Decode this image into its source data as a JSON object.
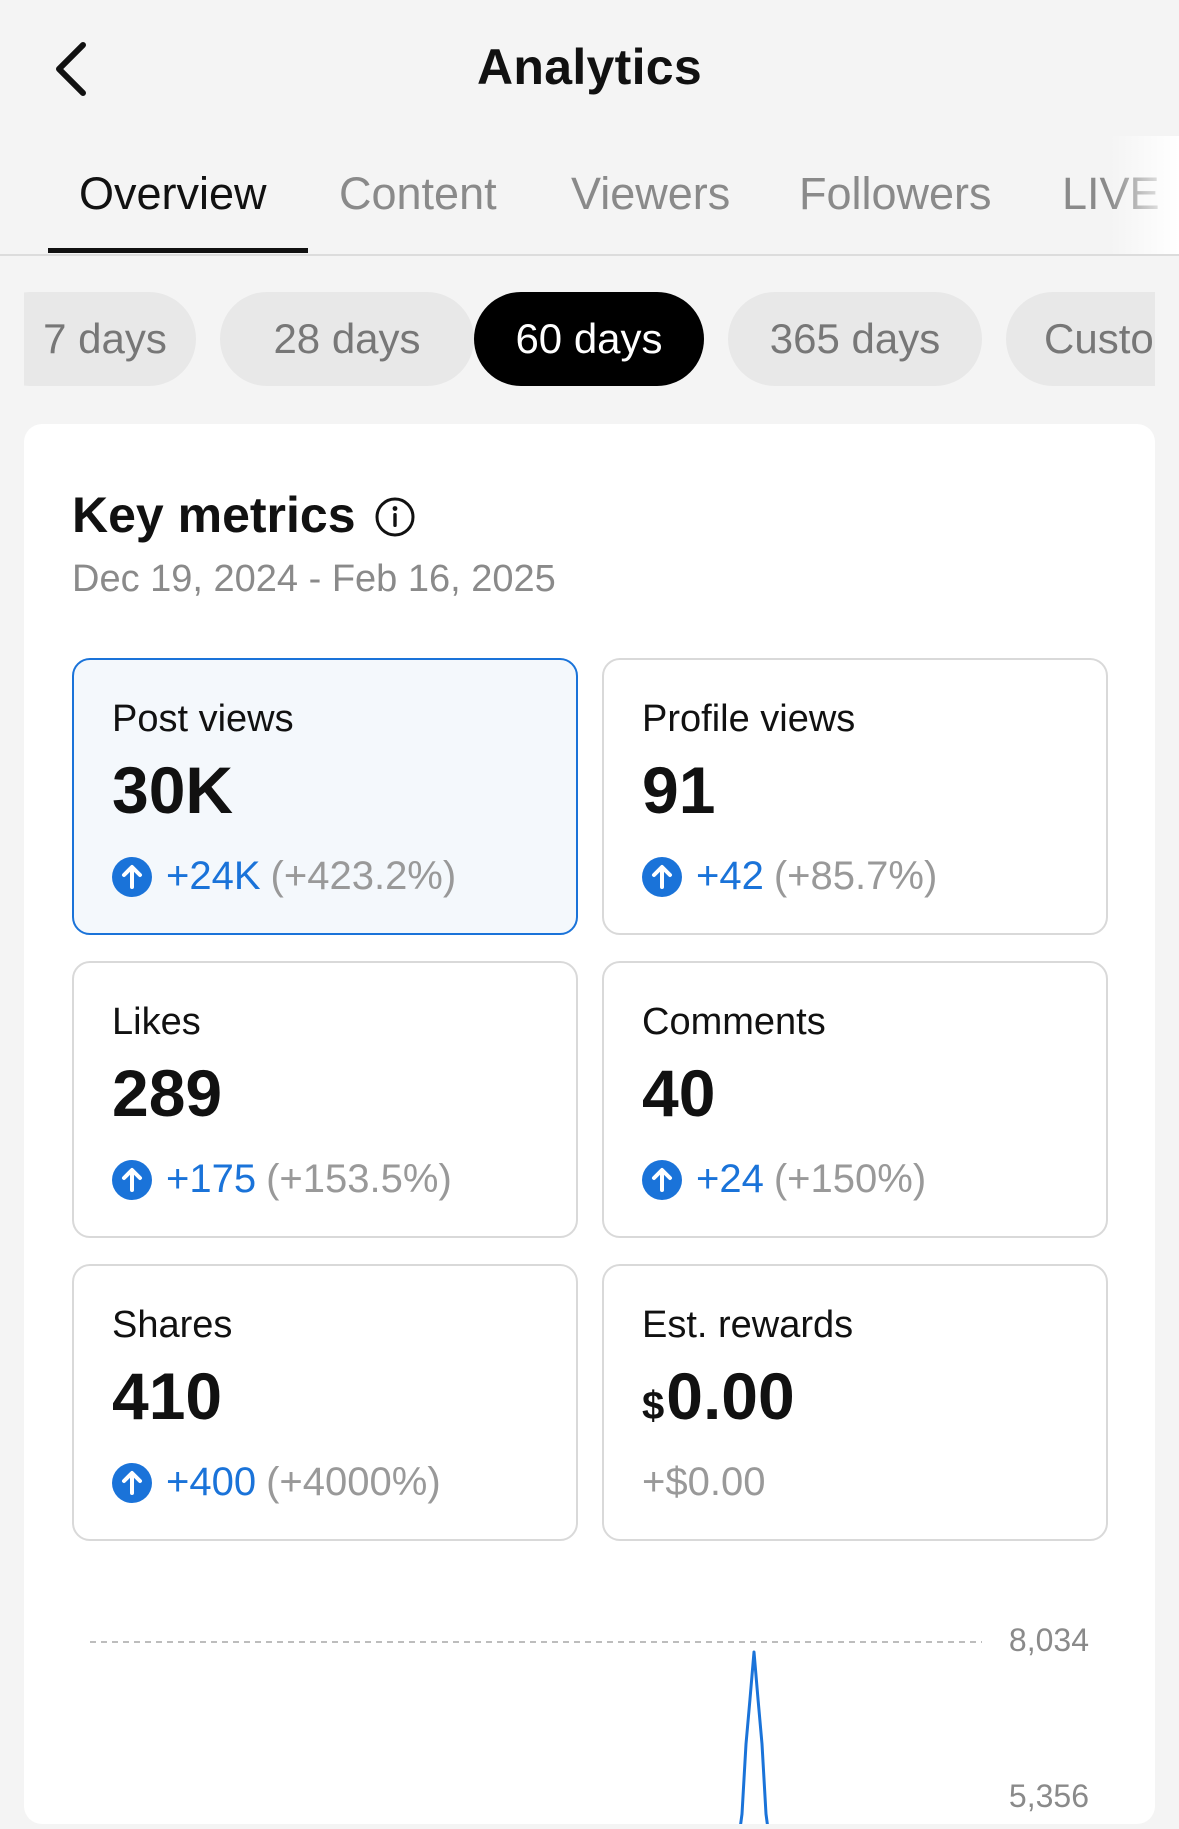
{
  "header": {
    "title": "Analytics"
  },
  "tabs": [
    {
      "label": "Overview",
      "active": true
    },
    {
      "label": "Content",
      "active": false
    },
    {
      "label": "Viewers",
      "active": false
    },
    {
      "label": "Followers",
      "active": false
    },
    {
      "label": "LIVE",
      "active": false
    }
  ],
  "periods": [
    {
      "label": "7 days",
      "active": false
    },
    {
      "label": "28 days",
      "active": false
    },
    {
      "label": "60 days",
      "active": true
    },
    {
      "label": "365 days",
      "active": false
    },
    {
      "label": "Custo",
      "active": false
    }
  ],
  "key_metrics": {
    "title": "Key metrics",
    "date_range": "Dec 19, 2024 - Feb 16, 2025",
    "metrics": [
      {
        "label": "Post views",
        "value": "30K",
        "delta": "+24K",
        "pct": "(+423.2%)",
        "selected": true
      },
      {
        "label": "Profile views",
        "value": "91",
        "delta": "+42",
        "pct": "(+85.7%)"
      },
      {
        "label": "Likes",
        "value": "289",
        "delta": "+175",
        "pct": "(+153.5%)"
      },
      {
        "label": "Comments",
        "value": "40",
        "delta": "+24",
        "pct": "(+150%)"
      },
      {
        "label": "Shares",
        "value": "410",
        "delta": "+400",
        "pct": "(+4000%)"
      },
      {
        "label": "Est. rewards",
        "currency": "$",
        "value": "0.00",
        "delta": "+$0.00"
      }
    ]
  },
  "chart": {
    "y_ticks": [
      "8,034",
      "5,356"
    ]
  },
  "chart_data": {
    "type": "line",
    "title": "",
    "xlabel": "",
    "ylabel": "",
    "y_ticks": [
      8034,
      5356
    ],
    "series": [
      {
        "values": [
          5356,
          8034,
          5356
        ]
      }
    ]
  },
  "colors": {
    "accent": "#1a73d9",
    "active_pill": "#000000",
    "muted_text": "#8a8a8a",
    "background": "#f4f4f4"
  }
}
